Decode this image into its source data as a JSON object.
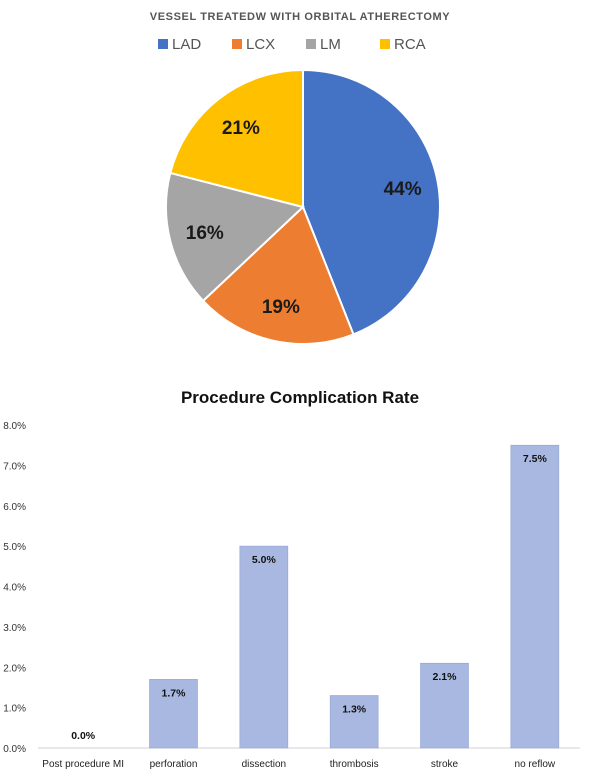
{
  "chart_data": [
    {
      "type": "pie",
      "title": "VESSEL TREATEDW WITH ORBITAL ATHERECTOMY",
      "legend_position": "top",
      "categories": [
        "LAD",
        "LCX",
        "LM",
        "RCA"
      ],
      "values": [
        44,
        19,
        16,
        21
      ],
      "labels": [
        "44%",
        "19%",
        "16%",
        "21%"
      ],
      "colors": [
        "#4472C4",
        "#ED7D31",
        "#A5A5A5",
        "#FFC000"
      ]
    },
    {
      "type": "bar",
      "title": "Procedure Complication Rate",
      "categories": [
        "Post procedure MI",
        "perforation",
        "dissection",
        "thrombosis",
        "stroke",
        "no reflow"
      ],
      "values": [
        0.0,
        1.7,
        5.0,
        1.3,
        2.1,
        7.5
      ],
      "labels": [
        "0.0%",
        "1.7%",
        "5.0%",
        "1.3%",
        "2.1%",
        "7.5%"
      ],
      "ylim": [
        0,
        8
      ],
      "yticks": [
        "0.0%",
        "1.0%",
        "2.0%",
        "3.0%",
        "4.0%",
        "5.0%",
        "6.0%",
        "7.0%",
        "8.0%"
      ],
      "color": "#A9B8E0",
      "grid": false
    }
  ]
}
